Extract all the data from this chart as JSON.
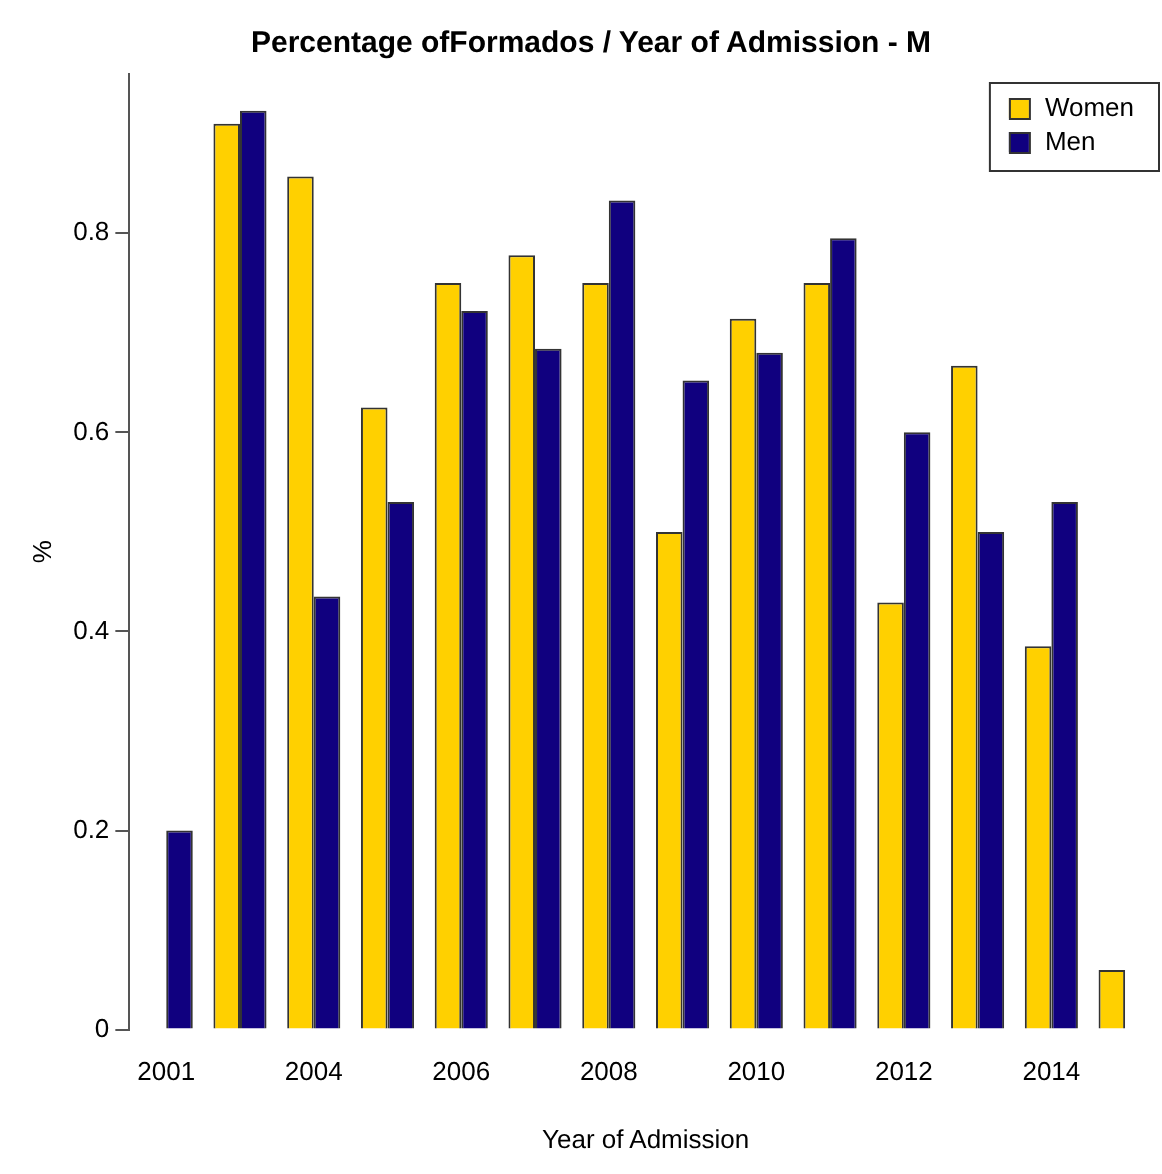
{
  "chart_data": {
    "type": "bar",
    "title": "Percentage ofFormados / Year of Admission - M",
    "xlabel": "Year of Admission",
    "ylabel": "%",
    "categories": [
      "2001",
      null,
      "2004",
      null,
      "2006",
      null,
      "2008",
      null,
      "2010",
      null,
      "2012",
      null,
      "2014",
      null
    ],
    "series": [
      {
        "name": "Women",
        "color": "#ffd000",
        "values": [
          0,
          0.91,
          0.857,
          0.625,
          0.75,
          0.778,
          0.75,
          0.5,
          0.714,
          0.75,
          0.429,
          0.667,
          0.385,
          0.06
        ]
      },
      {
        "name": "Men",
        "color": "#10007f",
        "values": [
          0.2,
          0.923,
          0.435,
          0.53,
          0.722,
          0.684,
          0.833,
          0.652,
          0.68,
          0.795,
          0.6,
          0.5,
          0.53,
          0
        ]
      }
    ],
    "ylim": [
      0,
      0.96
    ],
    "yticks": [
      0,
      0.2,
      0.4,
      0.6,
      0.8
    ],
    "grid": false,
    "legend": "top right"
  }
}
